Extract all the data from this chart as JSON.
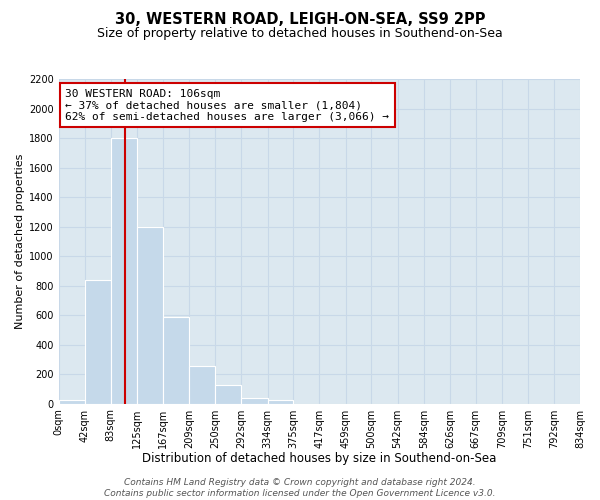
{
  "title": "30, WESTERN ROAD, LEIGH-ON-SEA, SS9 2PP",
  "subtitle": "Size of property relative to detached houses in Southend-on-Sea",
  "xlabel": "Distribution of detached houses by size in Southend-on-Sea",
  "ylabel": "Number of detached properties",
  "bar_edges": [
    0,
    42,
    83,
    125,
    167,
    209,
    250,
    292,
    334,
    375,
    417,
    459,
    500,
    542,
    584,
    626,
    667,
    709,
    751,
    792,
    834
  ],
  "bar_heights": [
    25,
    840,
    1800,
    1200,
    590,
    255,
    125,
    40,
    25,
    0,
    0,
    0,
    0,
    0,
    0,
    0,
    0,
    0,
    0,
    0
  ],
  "bar_color": "#c5d9ea",
  "bar_edge_color": "#ffffff",
  "vline_x": 106,
  "vline_color": "#cc0000",
  "annotation_line1": "30 WESTERN ROAD: 106sqm",
  "annotation_line2": "← 37% of detached houses are smaller (1,804)",
  "annotation_line3": "62% of semi-detached houses are larger (3,066) →",
  "annotation_box_color": "#ffffff",
  "annotation_box_edge": "#cc0000",
  "ylim": [
    0,
    2200
  ],
  "yticks": [
    0,
    200,
    400,
    600,
    800,
    1000,
    1200,
    1400,
    1600,
    1800,
    2000,
    2200
  ],
  "tick_labels": [
    "0sqm",
    "42sqm",
    "83sqm",
    "125sqm",
    "167sqm",
    "209sqm",
    "250sqm",
    "292sqm",
    "334sqm",
    "375sqm",
    "417sqm",
    "459sqm",
    "500sqm",
    "542sqm",
    "584sqm",
    "626sqm",
    "667sqm",
    "709sqm",
    "751sqm",
    "792sqm",
    "834sqm"
  ],
  "grid_color": "#c8d8e8",
  "bg_color": "#dce8f0",
  "fig_bg_color": "#ffffff",
  "footer_text": "Contains HM Land Registry data © Crown copyright and database right 2024.\nContains public sector information licensed under the Open Government Licence v3.0.",
  "title_fontsize": 10.5,
  "subtitle_fontsize": 9,
  "xlabel_fontsize": 8.5,
  "ylabel_fontsize": 8,
  "tick_fontsize": 7,
  "annot_fontsize": 8,
  "footer_fontsize": 6.5
}
